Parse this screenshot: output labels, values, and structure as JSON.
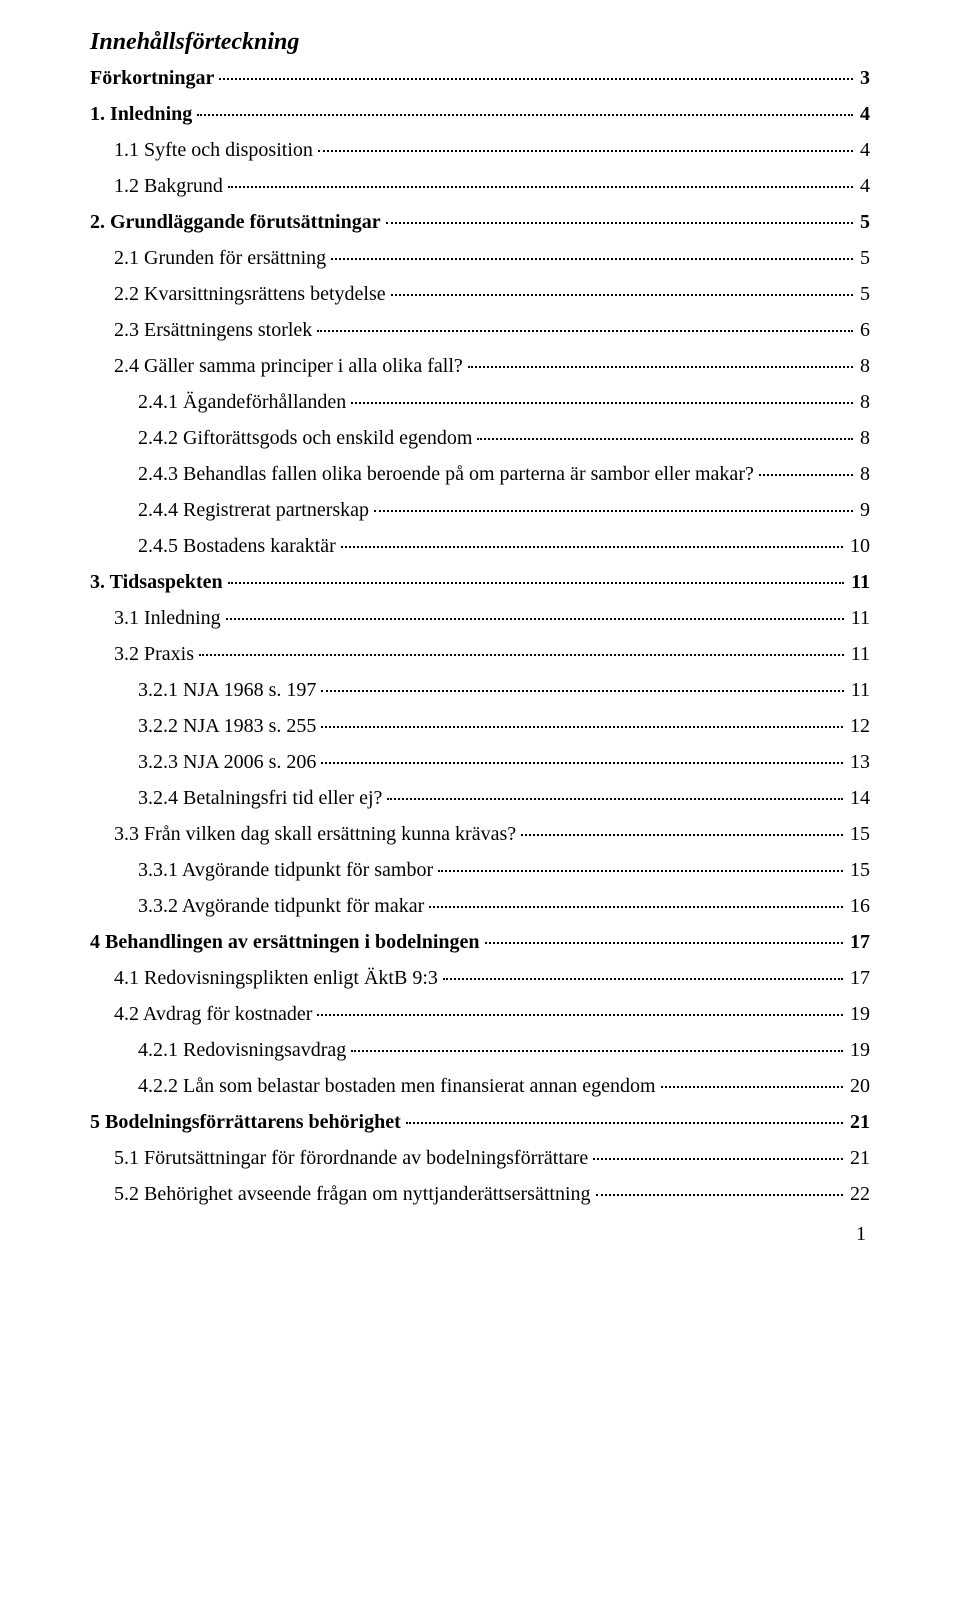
{
  "toc_title": "Innehållsförteckning",
  "page_number": "1",
  "entries": [
    {
      "label": "Förkortningar",
      "page": "3",
      "indent": 0,
      "bold": true
    },
    {
      "label": "1. Inledning",
      "page": "4",
      "indent": 0,
      "bold": true
    },
    {
      "label": "1.1 Syfte och disposition",
      "page": "4",
      "indent": 1,
      "bold": false
    },
    {
      "label": "1.2 Bakgrund",
      "page": "4",
      "indent": 1,
      "bold": false
    },
    {
      "label": "2. Grundläggande förutsättningar",
      "page": "5",
      "indent": 0,
      "bold": true
    },
    {
      "label": "2.1 Grunden för ersättning",
      "page": "5",
      "indent": 1,
      "bold": false
    },
    {
      "label": "2.2 Kvarsittningsrättens betydelse",
      "page": "5",
      "indent": 1,
      "bold": false
    },
    {
      "label": "2.3 Ersättningens storlek",
      "page": "6",
      "indent": 1,
      "bold": false
    },
    {
      "label": "2.4 Gäller samma principer i alla olika fall?",
      "page": "8",
      "indent": 1,
      "bold": false
    },
    {
      "label": "2.4.1 Ägandeförhållanden",
      "page": "8",
      "indent": 2,
      "bold": false
    },
    {
      "label": "2.4.2 Giftorättsgods och enskild egendom",
      "page": "8",
      "indent": 2,
      "bold": false
    },
    {
      "label": "2.4.3 Behandlas fallen olika beroende på om parterna är sambor eller makar?",
      "page": "8",
      "indent": 2,
      "bold": false
    },
    {
      "label": "2.4.4 Registrerat partnerskap",
      "page": "9",
      "indent": 2,
      "bold": false
    },
    {
      "label": "2.4.5 Bostadens karaktär",
      "page": "10",
      "indent": 2,
      "bold": false
    },
    {
      "label": "3. Tidsaspekten",
      "page": "11",
      "indent": 0,
      "bold": true
    },
    {
      "label": "3.1 Inledning",
      "page": "11",
      "indent": 1,
      "bold": false
    },
    {
      "label": "3.2 Praxis",
      "page": "11",
      "indent": 1,
      "bold": false
    },
    {
      "label": "3.2.1 NJA 1968 s. 197",
      "page": "11",
      "indent": 2,
      "bold": false
    },
    {
      "label": "3.2.2 NJA 1983 s. 255",
      "page": "12",
      "indent": 2,
      "bold": false
    },
    {
      "label": "3.2.3 NJA 2006 s. 206",
      "page": "13",
      "indent": 2,
      "bold": false
    },
    {
      "label": "3.2.4 Betalningsfri tid eller ej?",
      "page": "14",
      "indent": 2,
      "bold": false
    },
    {
      "label": "3.3 Från vilken dag skall ersättning kunna krävas?",
      "page": "15",
      "indent": 1,
      "bold": false
    },
    {
      "label": "3.3.1 Avgörande tidpunkt för sambor",
      "page": "15",
      "indent": 2,
      "bold": false
    },
    {
      "label": "3.3.2 Avgörande tidpunkt för makar",
      "page": "16",
      "indent": 2,
      "bold": false
    },
    {
      "label": "4 Behandlingen av ersättningen i bodelningen",
      "page": "17",
      "indent": 0,
      "bold": true
    },
    {
      "label": "4.1 Redovisningsplikten enligt ÄktB 9:3",
      "page": "17",
      "indent": 1,
      "bold": false
    },
    {
      "label": "4.2 Avdrag för kostnader",
      "page": "19",
      "indent": 1,
      "bold": false
    },
    {
      "label": "4.2.1 Redovisningsavdrag",
      "page": "19",
      "indent": 2,
      "bold": false
    },
    {
      "label": "4.2.2 Lån som belastar bostaden men finansierat annan egendom",
      "page": "20",
      "indent": 2,
      "bold": false
    },
    {
      "label": "5 Bodelningsförrättarens behörighet",
      "page": "21",
      "indent": 0,
      "bold": true
    },
    {
      "label": "5.1 Förutsättningar för förordnande av bodelningsförrättare",
      "page": "21",
      "indent": 1,
      "bold": false
    },
    {
      "label": "5.2 Behörighet avseende frågan om nyttjanderättsersättning",
      "page": "22",
      "indent": 1,
      "bold": false
    }
  ]
}
